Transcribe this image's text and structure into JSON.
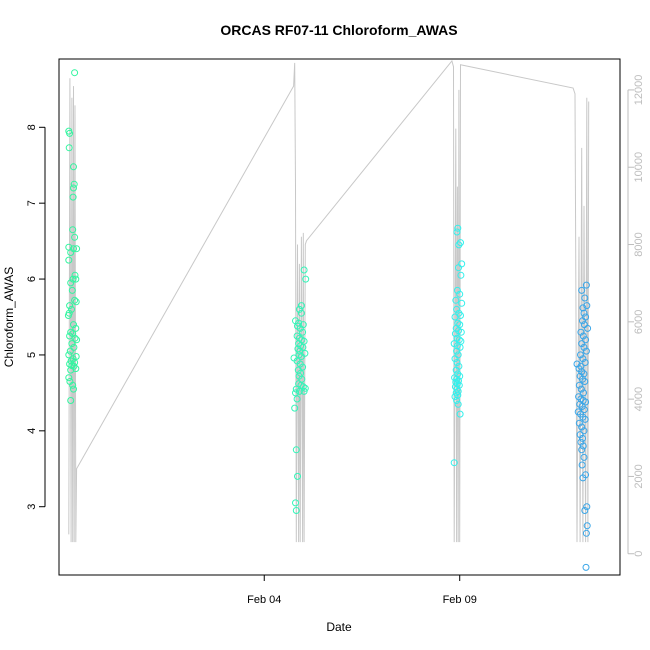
{
  "chart_data": {
    "type": "scatter",
    "title": "ORCAS RF07-11 Chloroform_AWAS",
    "xlabel": "Date",
    "ylabel": "Chloroform_AWAS",
    "x_unit": "days since Jan 30",
    "xlim": [
      -0.25,
      14.1
    ],
    "ylim": [
      2.1,
      8.9
    ],
    "y_ticks": [
      3,
      4,
      5,
      6,
      7,
      8
    ],
    "y_tick_labels": [
      "3",
      "4",
      "5",
      "6",
      "7",
      "8"
    ],
    "x_ticks": [
      5,
      10
    ],
    "x_tick_labels": [
      "Feb 04",
      "Feb 09"
    ],
    "right_axis": {
      "ylim": [
        -550,
        12800
      ],
      "ticks": [
        0,
        2000,
        4000,
        6000,
        8000,
        10000,
        12000
      ],
      "tick_labels": [
        "0",
        "2000",
        "4000",
        "6000",
        "8000",
        "10000",
        "12000"
      ],
      "color": "#bdbdbd"
    },
    "altitude_trace_color": "#c8c8c8",
    "series": [
      {
        "color": "#33f5a0",
        "points": [
          [
            0.15,
            8.72
          ],
          [
            0.0,
            7.95
          ],
          [
            0.02,
            7.92
          ],
          [
            0.01,
            7.73
          ],
          [
            0.12,
            7.48
          ],
          [
            0.14,
            7.25
          ],
          [
            0.12,
            7.2
          ],
          [
            0.11,
            7.08
          ],
          [
            0.1,
            6.65
          ],
          [
            0.15,
            6.55
          ],
          [
            0.0,
            6.42
          ],
          [
            0.12,
            6.4
          ],
          [
            0.2,
            6.4
          ],
          [
            0.05,
            6.35
          ],
          [
            0.0,
            6.25
          ],
          [
            0.16,
            6.05
          ],
          [
            0.11,
            6.0
          ],
          [
            0.18,
            6.0
          ],
          [
            0.05,
            5.95
          ],
          [
            0.09,
            5.85
          ],
          [
            0.15,
            5.72
          ],
          [
            0.19,
            5.7
          ],
          [
            0.02,
            5.65
          ],
          [
            0.07,
            5.6
          ],
          [
            0.01,
            5.55
          ],
          [
            -0.01,
            5.52
          ],
          [
            0.12,
            5.4
          ],
          [
            0.18,
            5.35
          ],
          [
            0.05,
            5.3
          ],
          [
            0.1,
            5.28
          ],
          [
            0.02,
            5.25
          ],
          [
            0.16,
            5.22
          ],
          [
            0.2,
            5.2
          ],
          [
            0.08,
            5.15
          ],
          [
            0.13,
            5.1
          ],
          [
            0.04,
            5.05
          ],
          [
            0.0,
            5.0
          ],
          [
            0.19,
            4.98
          ],
          [
            0.11,
            4.95
          ],
          [
            0.06,
            4.92
          ],
          [
            0.15,
            4.9
          ],
          [
            0.02,
            4.88
          ],
          [
            0.08,
            4.86
          ],
          [
            0.13,
            4.85
          ],
          [
            0.18,
            4.82
          ],
          [
            0.05,
            4.8
          ],
          [
            0.0,
            4.7
          ],
          [
            0.03,
            4.65
          ],
          [
            0.1,
            4.6
          ],
          [
            0.12,
            4.55
          ],
          [
            0.05,
            4.4
          ]
        ]
      },
      {
        "color": "#33f5b8",
        "points": [
          [
            6.02,
            6.12
          ],
          [
            6.06,
            6.0
          ],
          [
            5.95,
            5.65
          ],
          [
            5.9,
            5.6
          ],
          [
            5.95,
            5.55
          ],
          [
            5.8,
            5.45
          ],
          [
            5.88,
            5.42
          ],
          [
            6.0,
            5.4
          ],
          [
            5.85,
            5.38
          ],
          [
            5.92,
            5.35
          ],
          [
            5.98,
            5.3
          ],
          [
            5.84,
            5.25
          ],
          [
            5.9,
            5.22
          ],
          [
            5.96,
            5.2
          ],
          [
            6.02,
            5.18
          ],
          [
            5.88,
            5.15
          ],
          [
            5.93,
            5.12
          ],
          [
            5.99,
            5.1
          ],
          [
            5.86,
            5.08
          ],
          [
            5.91,
            5.05
          ],
          [
            6.04,
            5.02
          ],
          [
            5.89,
            5.0
          ],
          [
            5.95,
            4.98
          ],
          [
            5.76,
            4.96
          ],
          [
            5.84,
            4.92
          ],
          [
            5.92,
            4.88
          ],
          [
            5.98,
            4.84
          ],
          [
            5.87,
            4.8
          ],
          [
            5.93,
            4.76
          ],
          [
            5.89,
            4.72
          ],
          [
            5.96,
            4.68
          ],
          [
            5.88,
            4.62
          ],
          [
            5.94,
            4.6
          ],
          [
            6.0,
            4.58
          ],
          [
            6.05,
            4.56
          ],
          [
            5.82,
            4.55
          ],
          [
            5.9,
            4.52
          ],
          [
            6.02,
            4.52
          ],
          [
            5.8,
            4.5
          ],
          [
            5.84,
            4.42
          ],
          [
            5.78,
            4.3
          ],
          [
            5.82,
            3.75
          ],
          [
            5.85,
            3.4
          ],
          [
            5.8,
            3.05
          ],
          [
            5.82,
            2.95
          ]
        ]
      },
      {
        "color": "#33f0ec",
        "points": [
          [
            9.95,
            6.67
          ],
          [
            9.93,
            6.62
          ],
          [
            10.02,
            6.48
          ],
          [
            9.98,
            6.45
          ],
          [
            10.05,
            6.2
          ],
          [
            9.97,
            6.15
          ],
          [
            10.03,
            6.05
          ],
          [
            9.94,
            5.85
          ],
          [
            10.0,
            5.8
          ],
          [
            9.9,
            5.72
          ],
          [
            10.05,
            5.68
          ],
          [
            9.92,
            5.6
          ],
          [
            9.98,
            5.55
          ],
          [
            10.02,
            5.52
          ],
          [
            9.88,
            5.5
          ],
          [
            9.95,
            5.42
          ],
          [
            10.0,
            5.4
          ],
          [
            9.91,
            5.35
          ],
          [
            9.97,
            5.32
          ],
          [
            10.04,
            5.3
          ],
          [
            9.89,
            5.28
          ],
          [
            9.93,
            5.22
          ],
          [
            9.99,
            5.2
          ],
          [
            10.03,
            5.18
          ],
          [
            9.86,
            5.15
          ],
          [
            9.94,
            5.12
          ],
          [
            10.01,
            5.1
          ],
          [
            9.92,
            5.05
          ],
          [
            9.96,
            5.0
          ],
          [
            9.88,
            4.95
          ],
          [
            9.93,
            4.9
          ],
          [
            9.98,
            4.85
          ],
          [
            9.91,
            4.8
          ],
          [
            9.95,
            4.75
          ],
          [
            10.0,
            4.72
          ],
          [
            9.87,
            4.7
          ],
          [
            9.92,
            4.68
          ],
          [
            9.97,
            4.66
          ],
          [
            9.9,
            4.64
          ],
          [
            9.94,
            4.62
          ],
          [
            9.99,
            4.6
          ],
          [
            9.89,
            4.58
          ],
          [
            9.93,
            4.55
          ],
          [
            9.96,
            4.52
          ],
          [
            9.91,
            4.5
          ],
          [
            9.95,
            4.47
          ],
          [
            9.88,
            4.45
          ],
          [
            9.92,
            4.4
          ],
          [
            9.96,
            4.35
          ],
          [
            10.01,
            4.22
          ],
          [
            9.86,
            3.58
          ]
        ]
      },
      {
        "color": "#3aa6e8",
        "points": [
          [
            13.24,
            5.92
          ],
          [
            13.12,
            5.85
          ],
          [
            13.2,
            5.75
          ],
          [
            13.25,
            5.65
          ],
          [
            13.15,
            5.62
          ],
          [
            13.18,
            5.55
          ],
          [
            13.22,
            5.5
          ],
          [
            13.14,
            5.45
          ],
          [
            13.19,
            5.4
          ],
          [
            13.27,
            5.35
          ],
          [
            13.1,
            5.3
          ],
          [
            13.16,
            5.25
          ],
          [
            13.22,
            5.2
          ],
          [
            13.12,
            5.15
          ],
          [
            13.18,
            5.1
          ],
          [
            13.24,
            5.05
          ],
          [
            13.09,
            5.0
          ],
          [
            13.15,
            4.95
          ],
          [
            13.21,
            4.9
          ],
          [
            13.0,
            4.88
          ],
          [
            13.1,
            4.85
          ],
          [
            13.05,
            4.82
          ],
          [
            13.12,
            4.78
          ],
          [
            13.18,
            4.75
          ],
          [
            13.08,
            4.72
          ],
          [
            13.14,
            4.68
          ],
          [
            13.2,
            4.65
          ],
          [
            13.06,
            4.6
          ],
          [
            13.11,
            4.55
          ],
          [
            13.17,
            4.5
          ],
          [
            13.04,
            4.45
          ],
          [
            13.1,
            4.42
          ],
          [
            13.16,
            4.4
          ],
          [
            13.22,
            4.38
          ],
          [
            13.07,
            4.35
          ],
          [
            13.13,
            4.32
          ],
          [
            13.19,
            4.28
          ],
          [
            13.03,
            4.25
          ],
          [
            13.09,
            4.22
          ],
          [
            13.15,
            4.18
          ],
          [
            13.21,
            4.15
          ],
          [
            13.06,
            4.1
          ],
          [
            13.12,
            4.05
          ],
          [
            13.18,
            4.0
          ],
          [
            13.08,
            3.95
          ],
          [
            13.14,
            3.9
          ],
          [
            13.1,
            3.85
          ],
          [
            13.16,
            3.8
          ],
          [
            13.12,
            3.75
          ],
          [
            13.18,
            3.65
          ],
          [
            13.13,
            3.55
          ],
          [
            13.22,
            3.42
          ],
          [
            13.15,
            3.38
          ],
          [
            13.25,
            3.0
          ],
          [
            13.2,
            2.95
          ],
          [
            13.26,
            2.75
          ],
          [
            13.24,
            2.65
          ],
          [
            13.23,
            2.2
          ]
        ]
      }
    ],
    "altitude_trace": [
      [
        0.0,
        500
      ],
      [
        0.03,
        12300
      ],
      [
        0.06,
        300
      ],
      [
        0.08,
        11800
      ],
      [
        0.1,
        300
      ],
      [
        0.12,
        12100
      ],
      [
        0.14,
        300
      ],
      [
        0.16,
        11600
      ],
      [
        0.18,
        300
      ],
      [
        0.2,
        2200
      ],
      [
        5.75,
        12100
      ],
      [
        5.78,
        12700
      ],
      [
        5.8,
        9500
      ],
      [
        5.82,
        300
      ],
      [
        5.85,
        8000
      ],
      [
        5.88,
        300
      ],
      [
        5.9,
        7500
      ],
      [
        5.92,
        300
      ],
      [
        5.95,
        8200
      ],
      [
        5.98,
        300
      ],
      [
        6.0,
        8300
      ],
      [
        6.02,
        300
      ],
      [
        6.05,
        8000
      ],
      [
        6.08,
        8100
      ],
      [
        9.8,
        12750
      ],
      [
        9.84,
        12600
      ],
      [
        9.86,
        300
      ],
      [
        9.9,
        11000
      ],
      [
        9.92,
        300
      ],
      [
        9.94,
        9500
      ],
      [
        9.96,
        300
      ],
      [
        9.98,
        12000
      ],
      [
        10.0,
        300
      ],
      [
        10.02,
        12650
      ],
      [
        12.9,
        12050
      ],
      [
        12.95,
        11900
      ],
      [
        13.0,
        300
      ],
      [
        13.05,
        8200
      ],
      [
        13.08,
        300
      ],
      [
        13.12,
        10500
      ],
      [
        13.15,
        300
      ],
      [
        13.18,
        9000
      ],
      [
        13.22,
        300
      ],
      [
        13.25,
        11800
      ],
      [
        13.28,
        300
      ],
      [
        13.3,
        11700
      ]
    ]
  }
}
